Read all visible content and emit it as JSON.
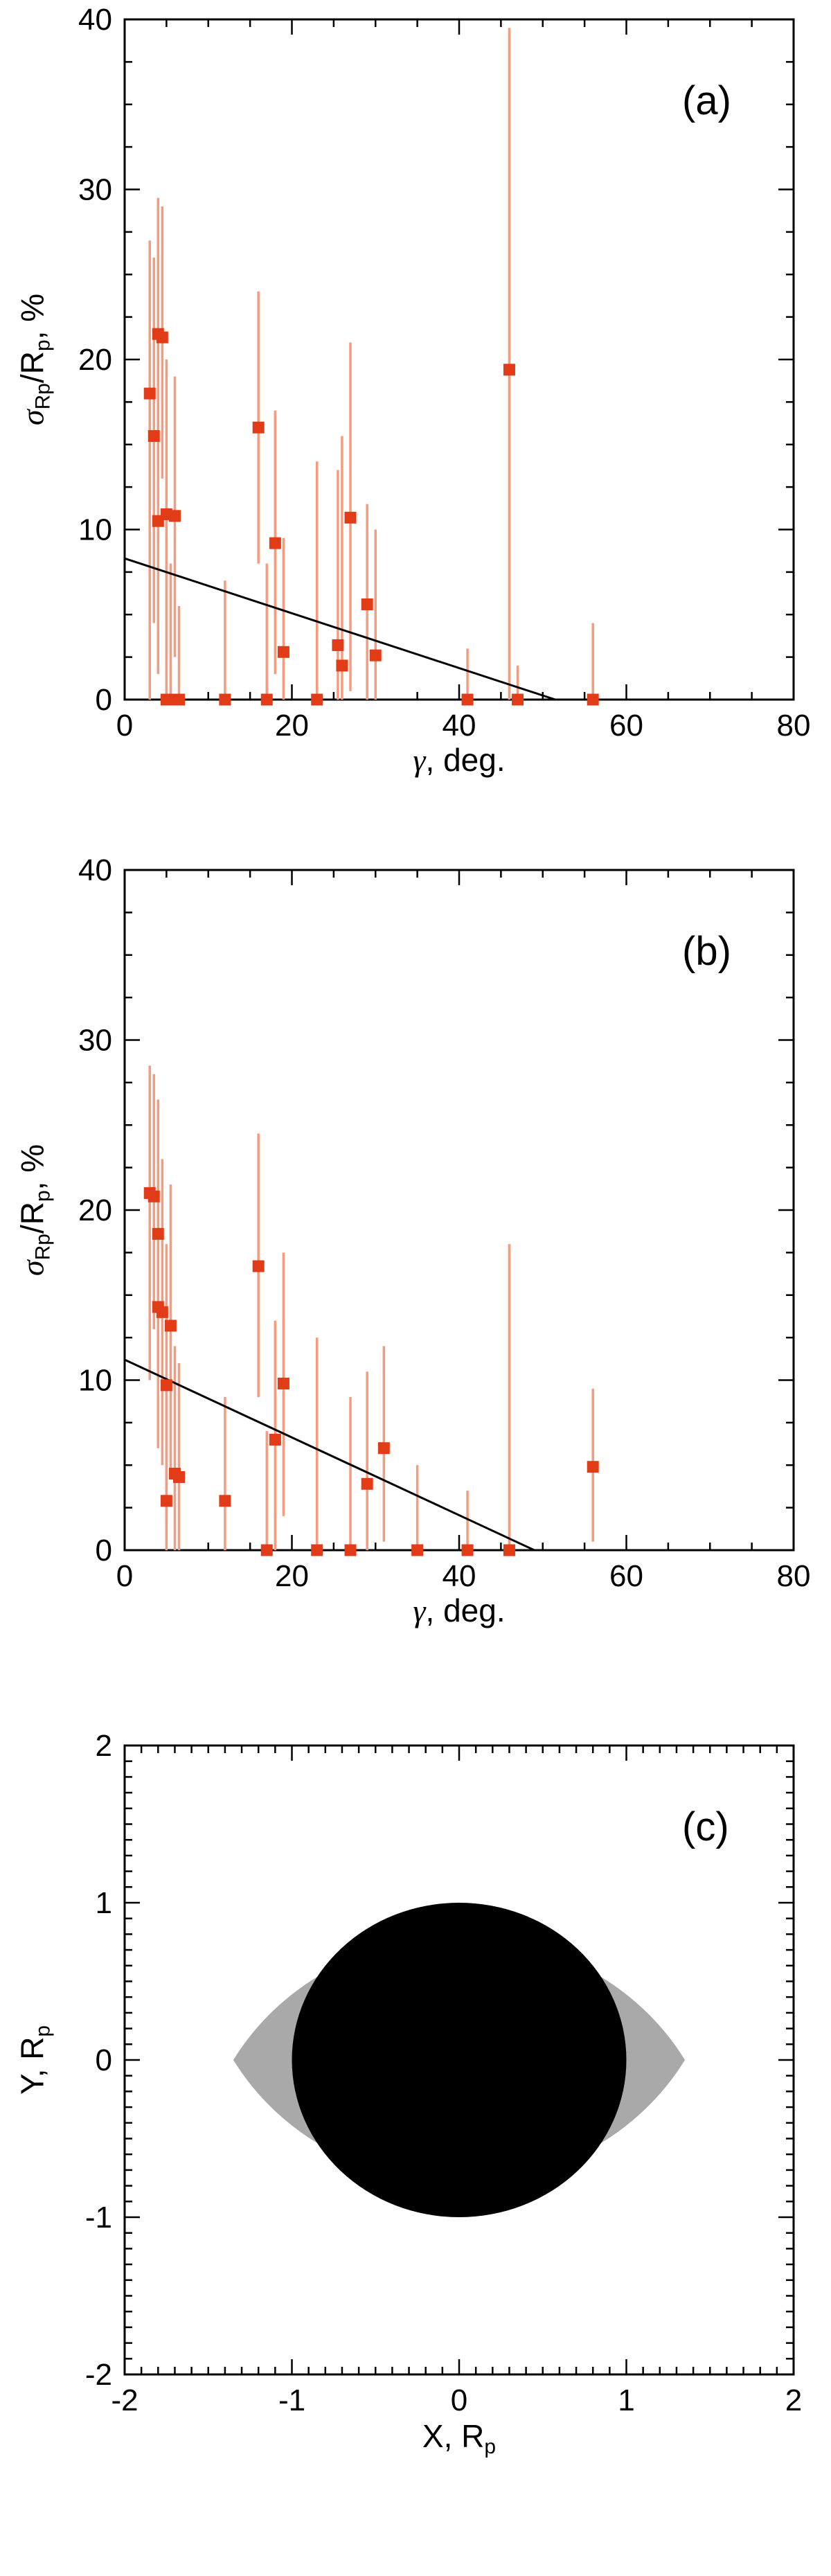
{
  "page": {
    "background": "#ffffff"
  },
  "chart_data": [
    {
      "panel": "a",
      "panel_label": "(a)",
      "type": "scatter",
      "xlabel": "γ, deg.",
      "xlabel_sym": "γ",
      "xlabel_rest": ", deg.",
      "ylabel": "σRp/Rp, %",
      "ylabel_parts": {
        "p1": "σ",
        "s1": "Rp",
        "p2": "/R",
        "s2": "p",
        "p3": ", %"
      },
      "xlim": [
        0,
        80
      ],
      "ylim": [
        0,
        40
      ],
      "x_major": [
        0,
        20,
        40,
        60,
        80
      ],
      "x_tick_labels": [
        "0",
        "20",
        "40",
        "60",
        "80"
      ],
      "x_minor_step": 5,
      "y_major": [
        0,
        10,
        20,
        30,
        40
      ],
      "y_tick_labels": [
        "0",
        "10",
        "20",
        "30",
        "40"
      ],
      "y_minor_step": 2.5,
      "grid": false,
      "marker": "filled-square",
      "marker_color": "#e23b17",
      "errorbar_color": "#f59b80",
      "trend_line": {
        "x1": 0,
        "y1": 8.3,
        "x2": 51.5,
        "y2": 0,
        "color": "#000000"
      },
      "points": [
        {
          "x": 3,
          "y": 18.0,
          "lo": 0,
          "hi": 27.0
        },
        {
          "x": 3.5,
          "y": 15.5,
          "lo": 4.5,
          "hi": 26.0
        },
        {
          "x": 4,
          "y": 21.5,
          "lo": 13.5,
          "hi": 29.5
        },
        {
          "x": 4.5,
          "y": 21.3,
          "lo": 13.0,
          "hi": 29.0
        },
        {
          "x": 4,
          "y": 10.5,
          "lo": 1.5,
          "hi": 20.0
        },
        {
          "x": 5,
          "y": 0.0,
          "lo": 0,
          "hi": 9.5
        },
        {
          "x": 5,
          "y": 10.9,
          "lo": 2.0,
          "hi": 20.0
        },
        {
          "x": 5.5,
          "y": 0.0,
          "lo": 0,
          "hi": 8.0
        },
        {
          "x": 6,
          "y": 10.8,
          "lo": 2.5,
          "hi": 19.0
        },
        {
          "x": 6.5,
          "y": 0.0,
          "lo": 0,
          "hi": 5.5
        },
        {
          "x": 12,
          "y": 0.0,
          "lo": 0,
          "hi": 7.0
        },
        {
          "x": 16,
          "y": 16.0,
          "lo": 8.0,
          "hi": 24.0
        },
        {
          "x": 17,
          "y": 0.0,
          "lo": 0,
          "hi": 8.0
        },
        {
          "x": 18,
          "y": 9.2,
          "lo": 1.5,
          "hi": 17.0
        },
        {
          "x": 19,
          "y": 2.8,
          "lo": 0,
          "hi": 9.5
        },
        {
          "x": 23,
          "y": 0.0,
          "lo": 0,
          "hi": 14.0
        },
        {
          "x": 25.5,
          "y": 3.2,
          "lo": 0,
          "hi": 13.5
        },
        {
          "x": 26,
          "y": 2.0,
          "lo": 0,
          "hi": 15.5
        },
        {
          "x": 27,
          "y": 10.7,
          "lo": 0.5,
          "hi": 21.0
        },
        {
          "x": 29,
          "y": 5.6,
          "lo": 0,
          "hi": 11.5
        },
        {
          "x": 30,
          "y": 2.6,
          "lo": 0,
          "hi": 10.0
        },
        {
          "x": 41,
          "y": 0.0,
          "lo": 0,
          "hi": 3.0
        },
        {
          "x": 46,
          "y": 19.4,
          "lo": 0,
          "hi": 39.5
        },
        {
          "x": 47,
          "y": 0.0,
          "lo": 0,
          "hi": 2.0
        },
        {
          "x": 56,
          "y": 0.0,
          "lo": 0,
          "hi": 4.5
        }
      ]
    },
    {
      "panel": "b",
      "panel_label": "(b)",
      "type": "scatter",
      "xlabel": "γ, deg.",
      "xlabel_sym": "γ",
      "xlabel_rest": ", deg.",
      "ylabel": "σRp/Rp, %",
      "ylabel_parts": {
        "p1": "σ",
        "s1": "Rp",
        "p2": "/R",
        "s2": "p",
        "p3": ", %"
      },
      "xlim": [
        0,
        80
      ],
      "ylim": [
        0,
        40
      ],
      "x_major": [
        0,
        20,
        40,
        60,
        80
      ],
      "x_tick_labels": [
        "0",
        "20",
        "40",
        "60",
        "80"
      ],
      "x_minor_step": 5,
      "y_major": [
        0,
        10,
        20,
        30,
        40
      ],
      "y_tick_labels": [
        "0",
        "10",
        "20",
        "30",
        "40"
      ],
      "y_minor_step": 2.5,
      "grid": false,
      "marker": "filled-square",
      "marker_color": "#e23b17",
      "errorbar_color": "#f59b80",
      "trend_line": {
        "x1": 0,
        "y1": 11.2,
        "x2": 49,
        "y2": 0,
        "color": "#000000"
      },
      "points": [
        {
          "x": 3,
          "y": 21.0,
          "lo": 10.0,
          "hi": 28.5
        },
        {
          "x": 3.5,
          "y": 20.8,
          "lo": 13.0,
          "hi": 28.0
        },
        {
          "x": 4,
          "y": 18.6,
          "lo": 10.5,
          "hi": 26.5
        },
        {
          "x": 4,
          "y": 14.3,
          "lo": 6.0,
          "hi": 22.5
        },
        {
          "x": 4.5,
          "y": 14.0,
          "lo": 5.0,
          "hi": 23.0
        },
        {
          "x": 5,
          "y": 9.7,
          "lo": 1.5,
          "hi": 18.0
        },
        {
          "x": 5,
          "y": 2.9,
          "lo": 0,
          "hi": 10.0
        },
        {
          "x": 5.5,
          "y": 13.2,
          "lo": 4.5,
          "hi": 21.5
        },
        {
          "x": 6,
          "y": 4.5,
          "lo": 0,
          "hi": 12.0
        },
        {
          "x": 6.5,
          "y": 4.3,
          "lo": 0,
          "hi": 11.0
        },
        {
          "x": 12,
          "y": 2.9,
          "lo": 0,
          "hi": 9.0
        },
        {
          "x": 16,
          "y": 16.7,
          "lo": 9.0,
          "hi": 24.5
        },
        {
          "x": 17,
          "y": 0.0,
          "lo": 0,
          "hi": 7.0
        },
        {
          "x": 18,
          "y": 6.5,
          "lo": 0,
          "hi": 13.5
        },
        {
          "x": 19,
          "y": 9.8,
          "lo": 2.0,
          "hi": 17.5
        },
        {
          "x": 23,
          "y": 0.0,
          "lo": 0,
          "hi": 12.5
        },
        {
          "x": 27,
          "y": 0.0,
          "lo": 0,
          "hi": 9.0
        },
        {
          "x": 29,
          "y": 3.9,
          "lo": 0,
          "hi": 10.5
        },
        {
          "x": 31,
          "y": 6.0,
          "lo": 0.5,
          "hi": 12.0
        },
        {
          "x": 35,
          "y": 0.0,
          "lo": 0,
          "hi": 5.0
        },
        {
          "x": 41,
          "y": 0.0,
          "lo": 0,
          "hi": 3.5
        },
        {
          "x": 46,
          "y": 0.0,
          "lo": 0,
          "hi": 18.0
        },
        {
          "x": 56,
          "y": 4.9,
          "lo": 0.5,
          "hi": 9.5
        }
      ]
    },
    {
      "panel": "c",
      "panel_label": "(c)",
      "type": "shapes",
      "xlabel": "X, Rp",
      "xlabel_parts": {
        "p1": "X, R",
        "s1": "p"
      },
      "ylabel": "Y, Rp",
      "ylabel_parts": {
        "p1": "Y, R",
        "s1": "p"
      },
      "xlim": [
        -2,
        2
      ],
      "ylim": [
        -2,
        2
      ],
      "x_major": [
        -2,
        -1,
        0,
        1,
        2
      ],
      "x_tick_labels": [
        "-2",
        "-1",
        "0",
        "1",
        "2"
      ],
      "x_minor_step": 0.1,
      "y_major": [
        -2,
        -1,
        0,
        1,
        2
      ],
      "y_tick_labels": [
        "-2",
        "-1",
        "0",
        "1",
        "2"
      ],
      "y_minor_step": 0.1,
      "grid": false,
      "shapes": {
        "star_lens": {
          "tip_x": 1.35,
          "half_height": 0.78,
          "color": "#a9a9a9"
        },
        "planet_disk": {
          "cx": 0,
          "cy": 0,
          "r": 1.0,
          "color": "#000000"
        }
      }
    }
  ]
}
